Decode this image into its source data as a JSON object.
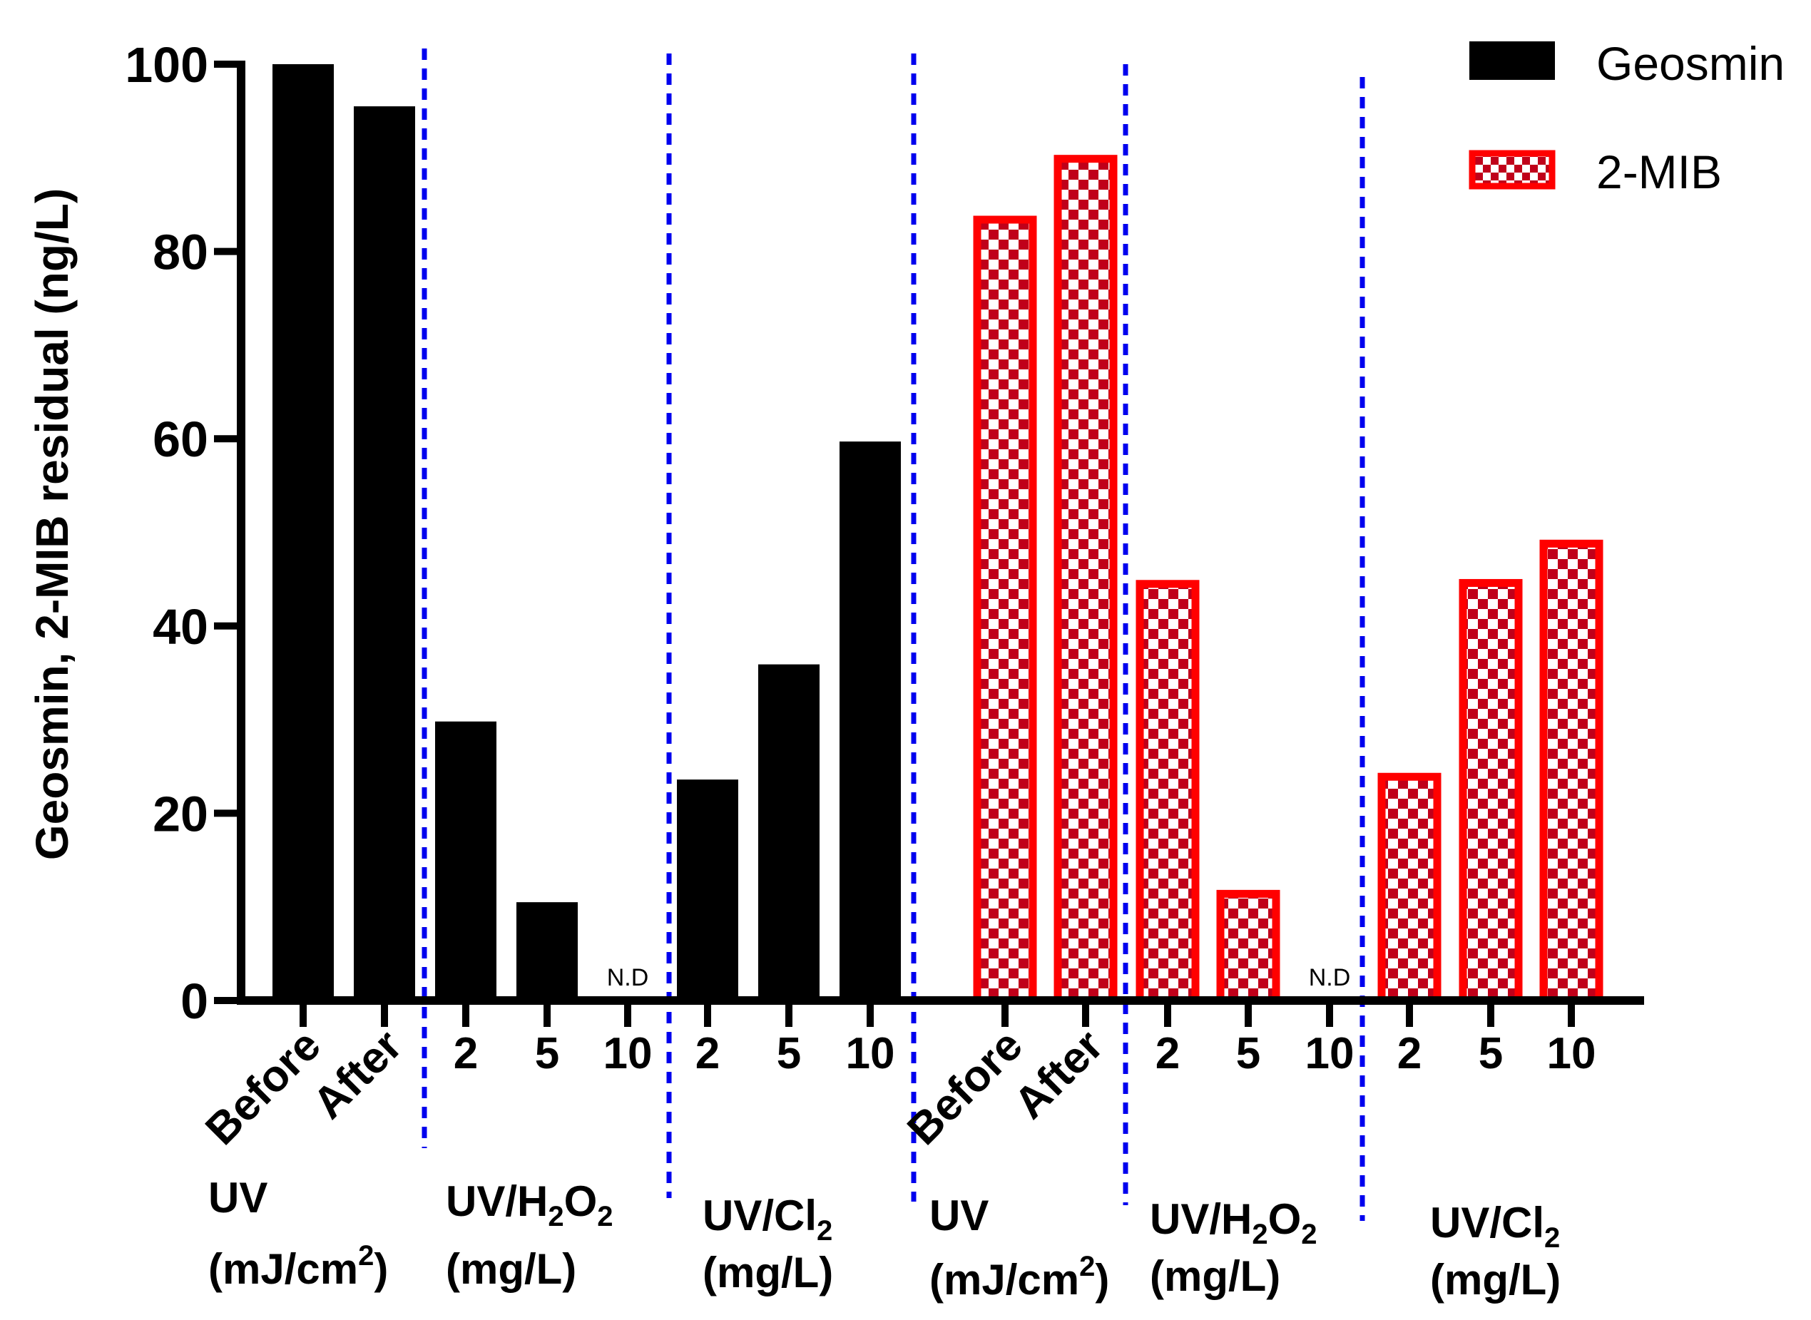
{
  "chart_data": {
    "type": "bar",
    "ylabel": "Geosmin, 2-MIB residual (ng/L)",
    "ylim": [
      0,
      100
    ],
    "yticks": [
      "0",
      "20",
      "40",
      "60",
      "80",
      "100"
    ],
    "legend": {
      "position": "top-right",
      "entries": [
        {
          "name": "Geosmin",
          "color": "#000000"
        },
        {
          "name": "2-MIB",
          "color": "#ff0000"
        }
      ]
    },
    "nd_label": "N.D",
    "series": [
      {
        "name": "Geosmin",
        "color": "#000000",
        "categories": [
          "Before",
          "After",
          "2",
          "5",
          "10",
          "2",
          "5",
          "10"
        ],
        "values": [
          100,
          95.5,
          29.8,
          10.5,
          0,
          23.6,
          35.9,
          59.7
        ],
        "nd": [
          false,
          false,
          false,
          false,
          true,
          false,
          false,
          false
        ]
      },
      {
        "name": "2-MIB",
        "color": "#ff0000",
        "categories": [
          "Before",
          "After",
          "2",
          "5",
          "10",
          "2",
          "5",
          "10"
        ],
        "values": [
          83.7,
          90.2,
          44.8,
          11.7,
          0,
          24.2,
          44.9,
          49.1
        ],
        "nd": [
          false,
          false,
          false,
          false,
          true,
          false,
          false,
          false
        ]
      }
    ],
    "groups": [
      {
        "line1": "UV",
        "line2_pre": "(mJ/cm",
        "line2_sup": "2",
        "line2_post": ")"
      },
      {
        "line1_pre": "UV/H",
        "line1_sub1": "2",
        "line1_mid": "O",
        "line1_sub2": "2",
        "line2": "(mg/L)"
      },
      {
        "line1_pre": "UV/Cl",
        "line1_sub": "2",
        "line2": "(mg/L)"
      },
      {
        "line1": "UV",
        "line2_pre": "(mJ/cm",
        "line2_sup": "2",
        "line2_post": ")"
      },
      {
        "line1_pre": "UV/H",
        "line1_sub1": "2",
        "line1_mid": "O",
        "line1_sub2": "2",
        "line2": "(mg/L)"
      },
      {
        "line1_pre": "UV/Cl",
        "line1_sub": "2",
        "line2": "(mg/L)"
      }
    ]
  }
}
